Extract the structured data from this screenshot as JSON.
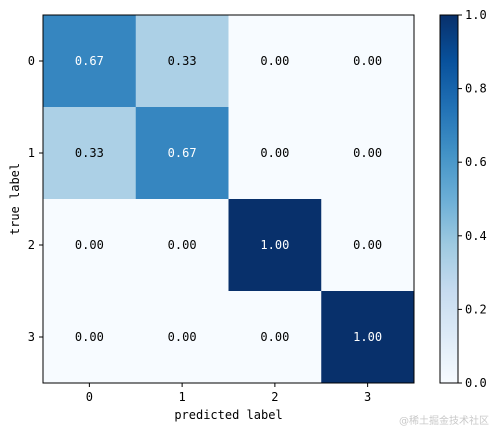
{
  "chart_data": {
    "type": "heatmap",
    "xlabel": "predicted label",
    "ylabel": "true label",
    "x_ticks": [
      "0",
      "1",
      "2",
      "3"
    ],
    "y_ticks": [
      "0",
      "1",
      "2",
      "3"
    ],
    "matrix": [
      [
        0.67,
        0.33,
        0.0,
        0.0
      ],
      [
        0.33,
        0.67,
        0.0,
        0.0
      ],
      [
        0.0,
        0.0,
        1.0,
        0.0
      ],
      [
        0.0,
        0.0,
        0.0,
        1.0
      ]
    ],
    "cell_labels": [
      [
        "0.67",
        "0.33",
        "0.00",
        "0.00"
      ],
      [
        "0.33",
        "0.67",
        "0.00",
        "0.00"
      ],
      [
        "0.00",
        "0.00",
        "1.00",
        "0.00"
      ],
      [
        "0.00",
        "0.00",
        "0.00",
        "1.00"
      ]
    ],
    "colormap": "Blues",
    "vmin": 0,
    "vmax": 1,
    "colorbar_ticks": [
      "0.0",
      "0.2",
      "0.4",
      "0.6",
      "0.8",
      "1.0"
    ],
    "colorbar_values": [
      0,
      0.2,
      0.4,
      0.6,
      0.8,
      1.0
    ],
    "grid": false
  },
  "watermark": "@稀土掘金技术社区"
}
